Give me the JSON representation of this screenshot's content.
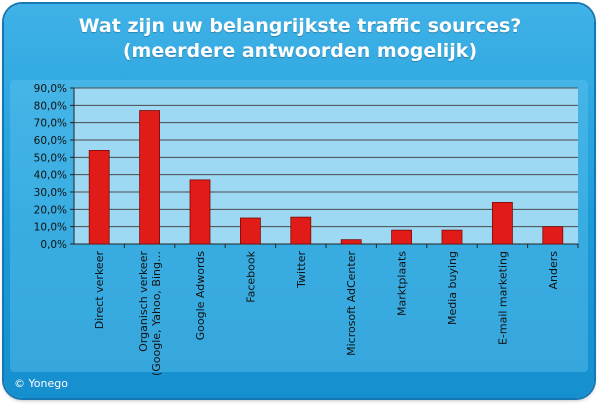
{
  "chart_data": {
    "type": "bar",
    "title": "Wat zijn uw belangrijkste traffic sources?",
    "subtitle": "(meerdere antwoorden mogelijk)",
    "categories": [
      [
        "Direct verkeer"
      ],
      [
        "Organisch verkeer",
        "(Google, Yahoo, Bing…"
      ],
      [
        "Google Adwords"
      ],
      [
        "Facebook"
      ],
      [
        "Twitter"
      ],
      [
        "Microsoft AdCenter"
      ],
      [
        "Marktplaats"
      ],
      [
        "Media buying"
      ],
      [
        "E-mail marketing"
      ],
      [
        "Anders"
      ]
    ],
    "values": [
      54.0,
      77.0,
      37.0,
      15.0,
      15.5,
      2.5,
      8.0,
      8.0,
      24.0,
      10.0
    ],
    "ylim": [
      0,
      90
    ],
    "yticks": [
      "0,0%",
      "10,0%",
      "20,0%",
      "30,0%",
      "40,0%",
      "50,0%",
      "60,0%",
      "70,0%",
      "80,0%",
      "90,0%"
    ],
    "grid": true,
    "colors": {
      "bar": "#e11b17",
      "plot_bg": "#9dd9f3",
      "grid": "#4a4a4a"
    }
  },
  "footer": {
    "copyright": "© Yonego"
  }
}
